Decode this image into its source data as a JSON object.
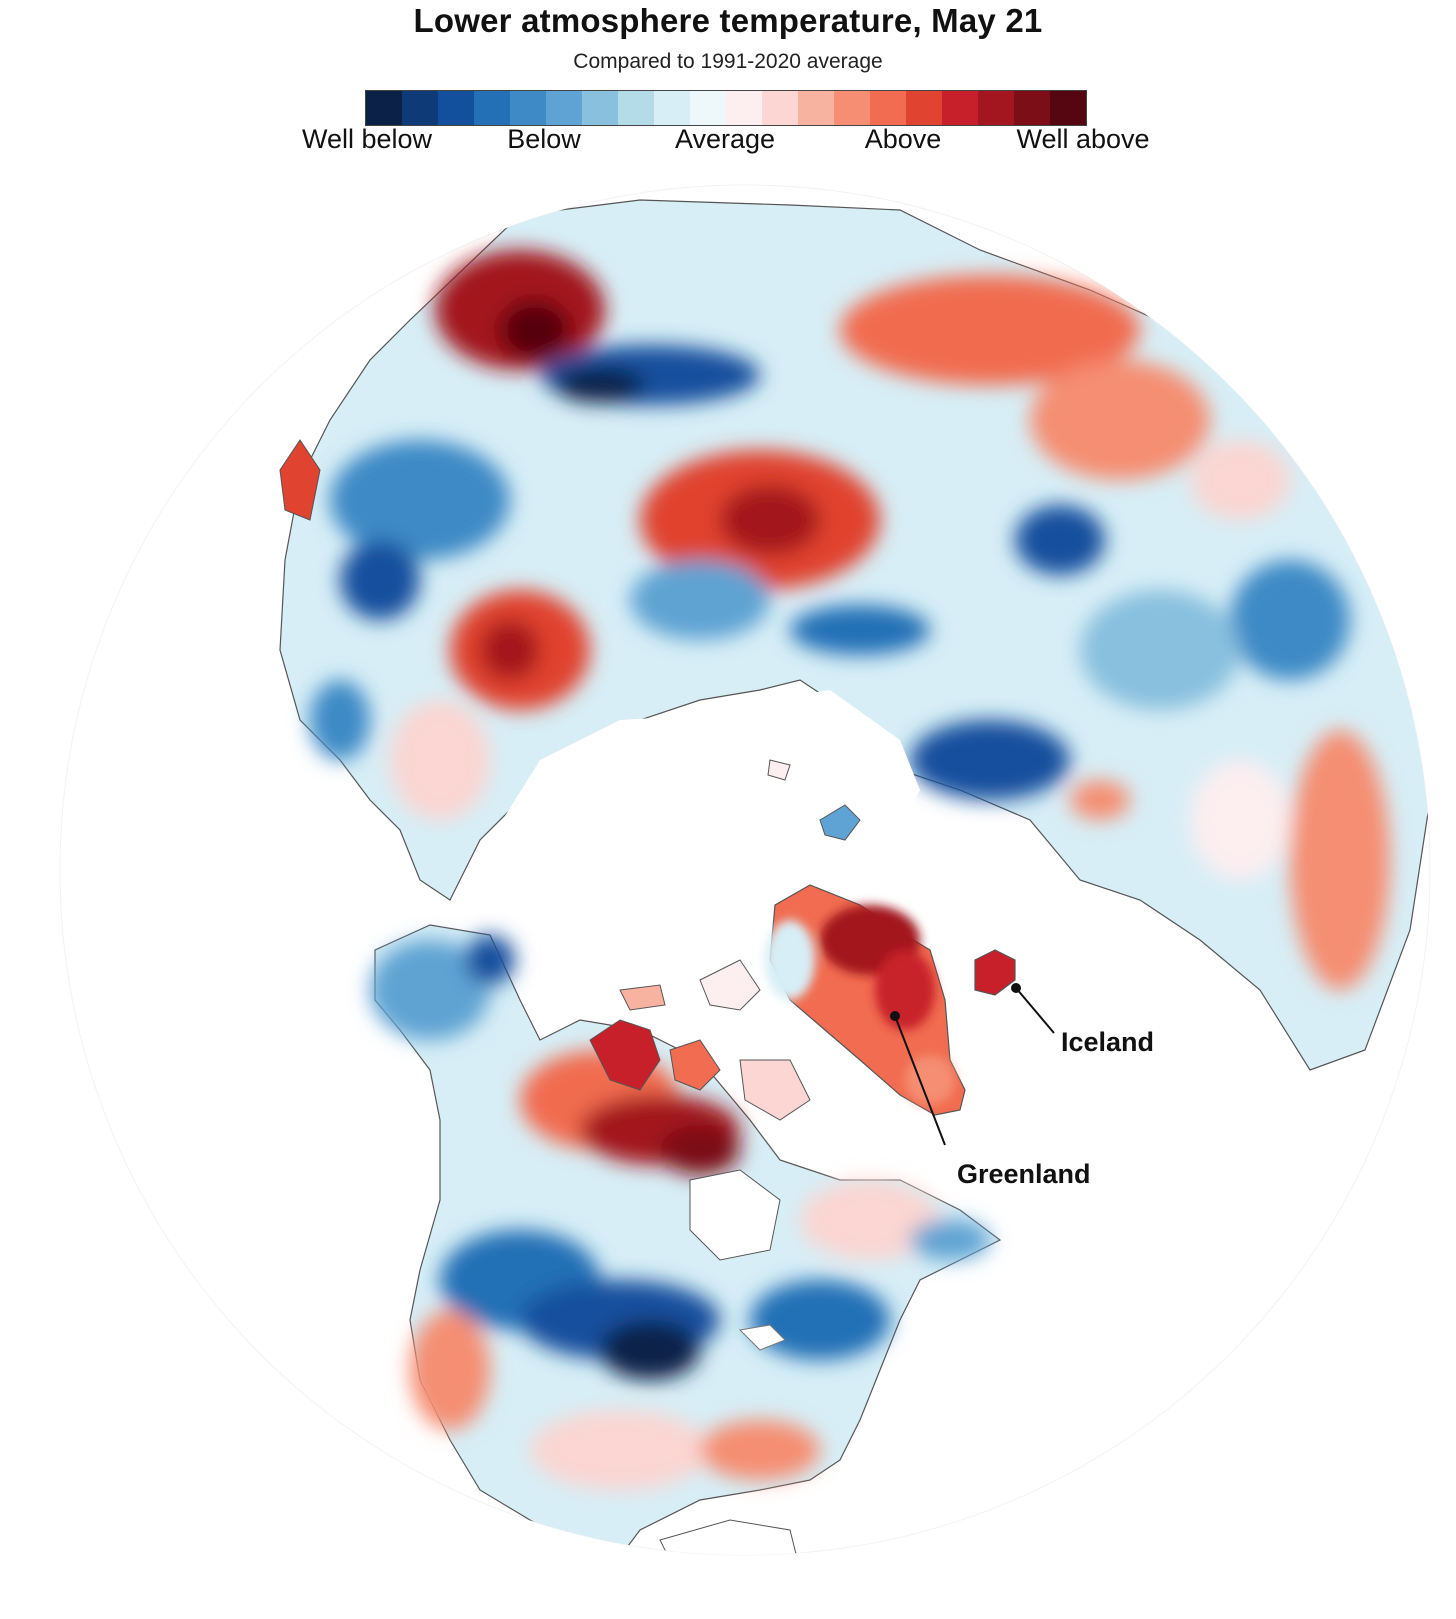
{
  "title": "Lower atmosphere temperature, May 21",
  "subtitle": "Compared to 1991-2020 average",
  "legend": {
    "colors": [
      "#0b2148",
      "#0f3a78",
      "#12509e",
      "#2470b6",
      "#3d8ac6",
      "#5ea3d3",
      "#88c0de",
      "#b3dbe8",
      "#d7eef6",
      "#eef8fb",
      "#fdeef0",
      "#fbd6d2",
      "#f8b2a0",
      "#f58e72",
      "#f16c50",
      "#e0432f",
      "#c8202a",
      "#a3161f",
      "#7c0e17",
      "#560610"
    ],
    "labels": [
      "Well below",
      "Below",
      "Average",
      "Above",
      "Well above"
    ]
  },
  "map": {
    "projection": "north-polar orthographic",
    "palette": {
      "well_below": "#12509e",
      "below": "#5ea3d3",
      "near_average": "#d7eef6",
      "above": "#f58e72",
      "well_above": "#a3161f"
    },
    "callouts": [
      {
        "label": "Iceland"
      },
      {
        "label": "Greenland"
      }
    ]
  }
}
